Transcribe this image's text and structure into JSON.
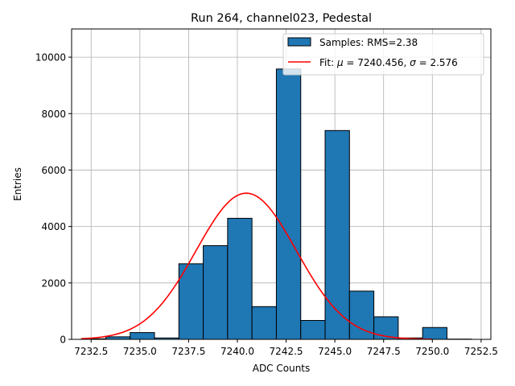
{
  "chart_data": {
    "type": "bar",
    "title": "Run 264, channel023, Pedestal",
    "xlabel": "ADC Counts",
    "ylabel": "Entries",
    "xlim": [
      7231.5,
      7253.0
    ],
    "ylim": [
      0,
      11000
    ],
    "grid": true,
    "legend_position": "upper-right",
    "x_ticks": [
      7232.5,
      7235.0,
      7237.5,
      7240.0,
      7242.5,
      7245.0,
      7247.5,
      7250.0,
      7252.5
    ],
    "x_tick_labels": [
      "7232.5",
      "7235.0",
      "7237.5",
      "7240.0",
      "7242.5",
      "7245.0",
      "7247.5",
      "7250.0",
      "7252.5"
    ],
    "y_ticks": [
      0,
      2000,
      4000,
      6000,
      8000,
      10000
    ],
    "y_tick_labels": [
      "0",
      "2000",
      "4000",
      "6000",
      "8000",
      "10000"
    ],
    "histogram": {
      "name": "Samples: RMS=2.38",
      "color": "#1f77b4",
      "edge_color": "#000000",
      "bin_edges": [
        7232.0,
        7233.25,
        7234.5,
        7235.75,
        7237.0,
        7238.25,
        7239.5,
        7240.75,
        7242.0,
        7243.25,
        7244.5,
        7245.75,
        7247.0,
        7248.25,
        7249.5,
        7250.75,
        7252.0
      ],
      "values": [
        20,
        90,
        240,
        50,
        2680,
        3320,
        4290,
        1160,
        9580,
        670,
        7400,
        1710,
        800,
        50,
        420,
        10
      ]
    },
    "fit": {
      "name": "Fit: μ = 7240.456, σ = 2.576",
      "color": "#ff0000",
      "mu": 7240.456,
      "sigma": 2.576,
      "amplitude": 5180,
      "x_range": [
        7232.0,
        7250.0
      ]
    }
  },
  "legend": {
    "samples_label": "Samples: RMS=2.38",
    "fit_label_prefix": "Fit: ",
    "fit_mu_symbol": "μ",
    "fit_mu_text": " = 7240.456, ",
    "fit_sigma_symbol": "σ",
    "fit_sigma_text": " = 2.576"
  }
}
